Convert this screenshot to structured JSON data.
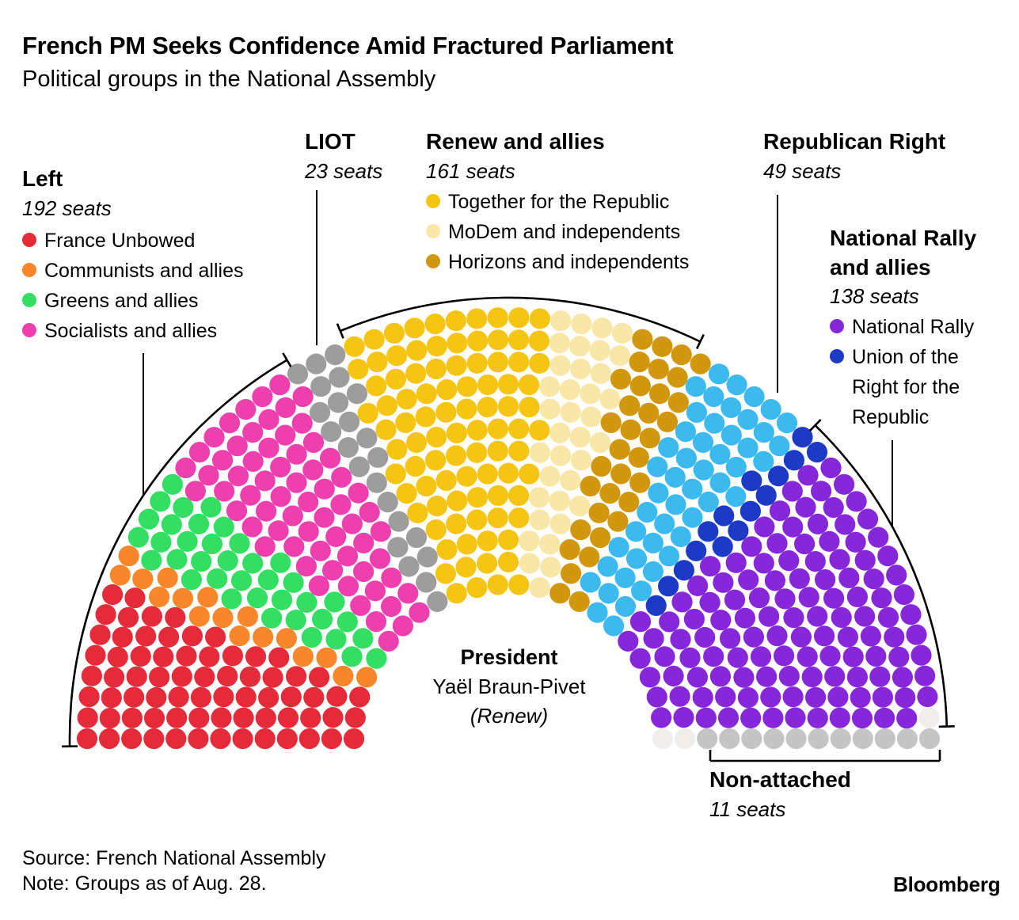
{
  "header": {
    "title": "French PM Seeks Confidence Amid Fractured Parliament",
    "subtitle": "Political groups in the National Assembly"
  },
  "groups": {
    "left": {
      "title": "Left",
      "seats_label": "192 seats",
      "items": [
        {
          "label": "France Unbowed"
        },
        {
          "label": "Communists and allies"
        },
        {
          "label": "Greens and allies"
        },
        {
          "label": "Socialists and allies"
        }
      ]
    },
    "liot": {
      "title": "LIOT",
      "seats_label": "23 seats"
    },
    "renew": {
      "title": "Renew and allies",
      "seats_label": "161 seats",
      "items": [
        {
          "label": "Together for the Republic"
        },
        {
          "label": "MoDem and independents"
        },
        {
          "label": "Horizons and independents"
        }
      ]
    },
    "republican_right": {
      "title": "Republican Right",
      "seats_label": "49 seats"
    },
    "national_rally": {
      "title_line1": "National Rally",
      "title_line2": "and allies",
      "seats_label": "138 seats",
      "items": [
        {
          "label": "National Rally"
        },
        {
          "label": "Union of the Right for the Republic"
        }
      ]
    },
    "non_attached": {
      "title": "Non-attached",
      "seats_label": "11 seats"
    }
  },
  "center_label": {
    "role": "President",
    "name": "Yaël Braun-Pivet",
    "party": "(Renew)"
  },
  "footer": {
    "source": "Source: French National Assembly",
    "note": "Note: Groups as of Aug. 28.",
    "brand": "Bloomberg"
  },
  "chart_data": {
    "type": "parliament-hemicycle",
    "total_seats": 577,
    "rows": 13,
    "groups": [
      {
        "name": "Left",
        "seats": 192
      },
      {
        "name": "LIOT",
        "seats": 23
      },
      {
        "name": "Renew and allies",
        "seats": 161
      },
      {
        "name": "Republican Right",
        "seats": 49
      },
      {
        "name": "National Rally and allies",
        "seats": 138
      },
      {
        "name": "Non-attached",
        "seats": 11
      },
      {
        "name": "Vacant",
        "seats": 3
      }
    ],
    "parties": [
      {
        "name": "France Unbowed",
        "group": "Left",
        "seats": 71,
        "color": "#e52a3a"
      },
      {
        "name": "Communists and allies",
        "group": "Left",
        "seats": 17,
        "color": "#f8872b"
      },
      {
        "name": "Greens and allies",
        "group": "Left",
        "seats": 38,
        "color": "#33df63"
      },
      {
        "name": "Socialists and allies",
        "group": "Left",
        "seats": 66,
        "color": "#ee3fae"
      },
      {
        "name": "LIOT",
        "group": "LIOT",
        "seats": 23,
        "color": "#9d9d9d"
      },
      {
        "name": "Together for the Republic",
        "group": "Renew and allies",
        "seats": 91,
        "color": "#f6c514"
      },
      {
        "name": "MoDem and independents",
        "group": "Renew and allies",
        "seats": 36,
        "color": "#f8e7a6"
      },
      {
        "name": "Horizons and independents",
        "group": "Renew and allies",
        "seats": 34,
        "color": "#d0970f"
      },
      {
        "name": "Republican Right",
        "group": "Republican Right",
        "seats": 49,
        "color": "#3cbaf0"
      },
      {
        "name": "Union of the Right for the Republic",
        "group": "National Rally and allies",
        "seats": 15,
        "color": "#1d3ac6"
      },
      {
        "name": "National Rally",
        "group": "National Rally and allies",
        "seats": 123,
        "color": "#8627da"
      },
      {
        "name": "Vacant",
        "group": "Vacant",
        "seats": 3,
        "color": "#efeeec"
      },
      {
        "name": "Non-attached",
        "group": "Non-attached",
        "seats": 11,
        "color": "#c5c5c5"
      }
    ]
  }
}
